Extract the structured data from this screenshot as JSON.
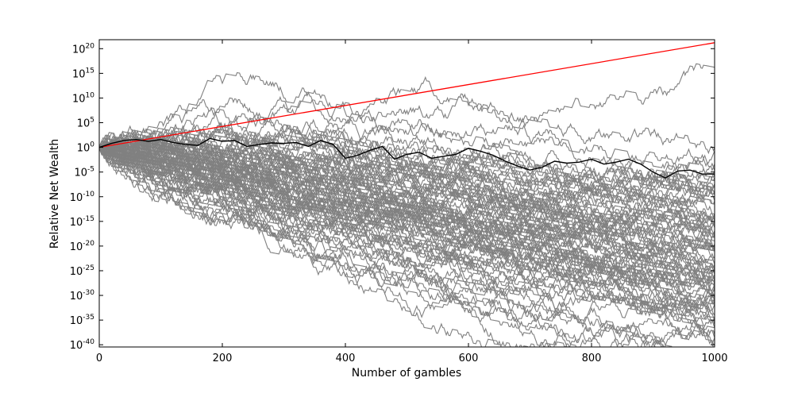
{
  "chart_data": {
    "type": "line",
    "title": "",
    "xlabel": "Number of gambles",
    "ylabel": "Relative Net Wealth",
    "xlim": [
      0,
      1000
    ],
    "ylim_log10": [
      -40,
      22
    ],
    "y_scale": "log",
    "grid": false,
    "x_ticks": [
      {
        "value": 0,
        "label": "0"
      },
      {
        "value": 200,
        "label": "200"
      },
      {
        "value": 400,
        "label": "400"
      },
      {
        "value": 600,
        "label": "600"
      },
      {
        "value": 800,
        "label": "800"
      },
      {
        "value": 1000,
        "label": "1000"
      }
    ],
    "y_ticks": [
      {
        "exp": 20,
        "base": "10",
        "sup": "20"
      },
      {
        "exp": 15,
        "base": "10",
        "sup": "15"
      },
      {
        "exp": 10,
        "base": "10",
        "sup": "10"
      },
      {
        "exp": 5,
        "base": "10",
        "sup": "5"
      },
      {
        "exp": 0,
        "base": "10",
        "sup": "0"
      },
      {
        "exp": -5,
        "base": "10",
        "sup": "-5"
      },
      {
        "exp": -10,
        "base": "10",
        "sup": "-10"
      },
      {
        "exp": -15,
        "base": "10",
        "sup": "-15"
      },
      {
        "exp": -20,
        "base": "10",
        "sup": "-20"
      },
      {
        "exp": -25,
        "base": "10",
        "sup": "-25"
      },
      {
        "exp": -30,
        "base": "10",
        "sup": "-30"
      },
      {
        "exp": -35,
        "base": "10",
        "sup": "-35"
      },
      {
        "exp": -40,
        "base": "10",
        "sup": "-40"
      }
    ],
    "series": [
      {
        "role": "expected-value",
        "color": "#ff0000",
        "x": [
          0,
          1000
        ],
        "y_log10": [
          0,
          21.2
        ]
      },
      {
        "role": "ensemble-median",
        "color": "#000000",
        "x": [
          0,
          20,
          40,
          60,
          80,
          100,
          120,
          140,
          160,
          180,
          200,
          220,
          240,
          260,
          280,
          300,
          320,
          340,
          360,
          380,
          400,
          420,
          440,
          460,
          480,
          500,
          520,
          540,
          560,
          580,
          600,
          620,
          640,
          660,
          680,
          700,
          720,
          740,
          760,
          780,
          800,
          820,
          840,
          860,
          880,
          900,
          920,
          940,
          960,
          980,
          1000
        ],
        "y_log10": [
          0,
          0.8,
          1.4,
          1.6,
          1.2,
          1.6,
          1.0,
          0.6,
          0.4,
          1.8,
          1.2,
          1.4,
          0.2,
          0.6,
          0.9,
          0.8,
          1.0,
          0.2,
          1.4,
          0.6,
          -2.2,
          -1.6,
          -0.6,
          0.2,
          -2.4,
          -1.4,
          -1.0,
          -2.2,
          -1.8,
          -1.4,
          -0.2,
          -0.8,
          -1.6,
          -2.8,
          -3.8,
          -4.6,
          -4.0,
          -2.8,
          -3.2,
          -3.0,
          -2.4,
          -3.4,
          -3.0,
          -2.4,
          -3.4,
          -5.0,
          -6.2,
          -4.8,
          -4.6,
          -5.4,
          -5.4
        ]
      }
    ],
    "simulations": {
      "count": 100,
      "color": "#808080",
      "drift_log10_per_gamble": -0.023,
      "step_log10": 0.398
    }
  }
}
